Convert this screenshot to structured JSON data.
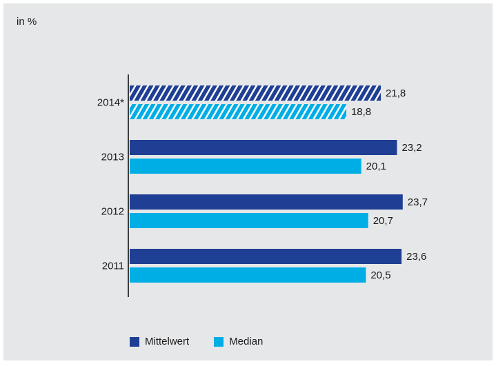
{
  "chart_data": {
    "type": "bar",
    "orientation": "horizontal",
    "unit_label": "in %",
    "categories": [
      "2014*",
      "2013",
      "2012",
      "2011"
    ],
    "series": [
      {
        "name": "Mittelwert",
        "values": [
          21.8,
          23.2,
          23.7,
          23.6
        ],
        "value_labels": [
          "21,8",
          "23,2",
          "23,7",
          "23,6"
        ],
        "color": "#1f3f94"
      },
      {
        "name": "Median",
        "values": [
          18.8,
          20.1,
          20.7,
          20.5
        ],
        "value_labels": [
          "18,8",
          "20,1",
          "20,7",
          "20,5"
        ],
        "color": "#00aee6"
      }
    ],
    "hatched_categories": [
      "2014*"
    ],
    "xlim": [
      0,
      27
    ],
    "grid": false,
    "legend_position": "bottom-left"
  },
  "colors": {
    "background": "#e6e7e8",
    "axis": "#3c3c3c",
    "text": "#1a1a1a"
  }
}
